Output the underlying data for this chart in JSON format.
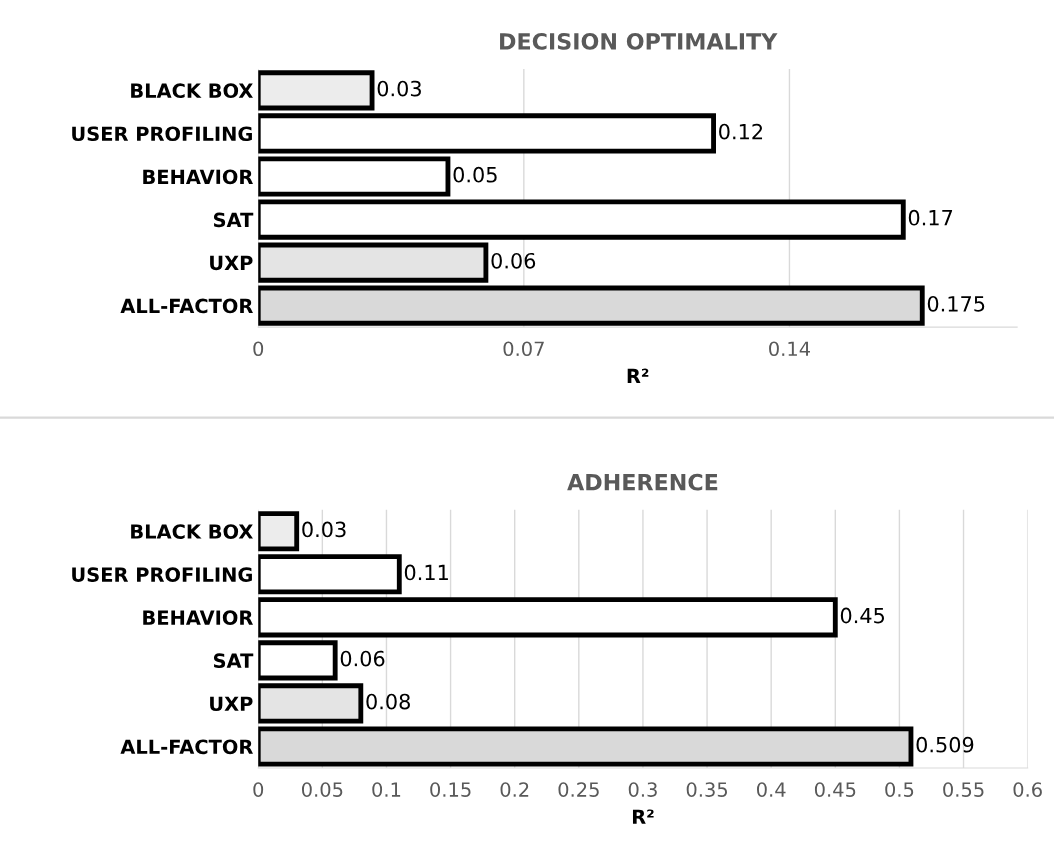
{
  "chart_data": [
    {
      "type": "bar",
      "orientation": "horizontal",
      "title": "DECISION OPTIMALITY",
      "xlabel": "R²",
      "categories": [
        "BLACK BOX",
        "USER PROFILING",
        "BEHAVIOR",
        "SAT",
        "UXP",
        "ALL-FACTOR"
      ],
      "values": [
        0.03,
        0.12,
        0.05,
        0.17,
        0.06,
        0.175
      ],
      "colors": [
        "#ececec",
        "#ffffff",
        "#ffffff",
        "#ffffff",
        "#e4e4e4",
        "#d9d9d9"
      ],
      "xlim": [
        0,
        0.2
      ],
      "xticks": [
        0,
        0.07,
        0.14
      ],
      "grid": "x",
      "data_labels": true
    },
    {
      "type": "bar",
      "orientation": "horizontal",
      "title": "ADHERENCE",
      "xlabel": "R²",
      "categories": [
        "BLACK BOX",
        "USER PROFILING",
        "BEHAVIOR",
        "SAT",
        "UXP",
        "ALL-FACTOR"
      ],
      "values": [
        0.03,
        0.11,
        0.45,
        0.06,
        0.08,
        0.509
      ],
      "colors": [
        "#ececec",
        "#ffffff",
        "#ffffff",
        "#ffffff",
        "#e4e4e4",
        "#d9d9d9"
      ],
      "xlim": [
        0,
        0.6
      ],
      "xticks": [
        0,
        0.05,
        0.1,
        0.15,
        0.2,
        0.25,
        0.3,
        0.35,
        0.4,
        0.45,
        0.5,
        0.55,
        0.6
      ],
      "grid": "x",
      "data_labels": true
    }
  ]
}
